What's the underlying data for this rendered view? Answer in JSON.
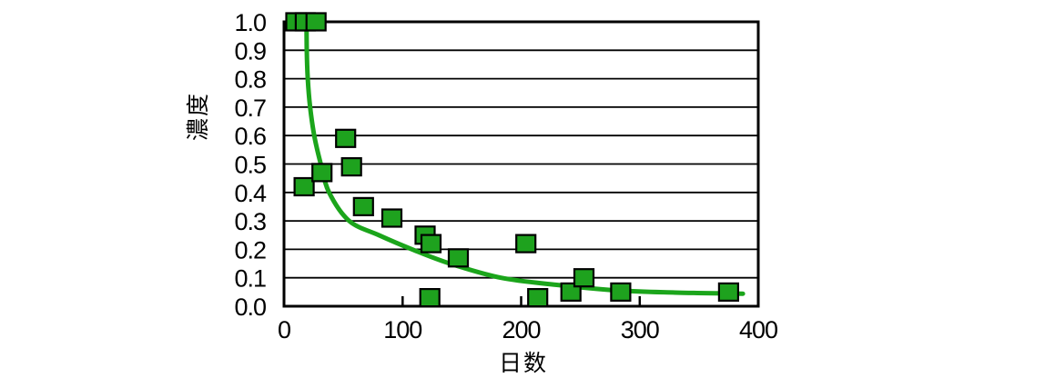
{
  "chart_data": {
    "type": "scatter",
    "title": "",
    "xlabel": "日数",
    "ylabel": "濃度",
    "xlim": [
      0,
      400
    ],
    "ylim": [
      0.0,
      1.0
    ],
    "x_tick_labels": [
      "0",
      "100",
      "200",
      "300",
      "400"
    ],
    "x_tick_values": [
      0,
      100,
      200,
      300,
      400
    ],
    "y_tick_labels": [
      "0.0",
      "0.1",
      "0.2",
      "0.3",
      "0.4",
      "0.5",
      "0.6",
      "0.7",
      "0.8",
      "0.9",
      "1.0"
    ],
    "y_tick_values": [
      0.0,
      0.1,
      0.2,
      0.3,
      0.4,
      0.5,
      0.6,
      0.7,
      0.8,
      0.9,
      1.0
    ],
    "grid": "horizontal",
    "legend": "none",
    "marker": {
      "shape": "square",
      "fill": "#1ea21e",
      "stroke": "#000000"
    },
    "colors": {
      "marker_green": "#1ea21e",
      "curve_green": "#1ba51b",
      "axis": "#000000",
      "gridline": "#000000",
      "background": "#ffffff"
    },
    "points": [
      [
        10,
        1.0
      ],
      [
        18,
        1.0
      ],
      [
        27,
        1.0
      ],
      [
        17,
        0.42
      ],
      [
        32,
        0.47
      ],
      [
        52,
        0.59
      ],
      [
        57,
        0.49
      ],
      [
        67,
        0.35
      ],
      [
        91,
        0.31
      ],
      [
        119,
        0.25
      ],
      [
        124,
        0.22
      ],
      [
        147,
        0.17
      ],
      [
        123,
        0.03
      ],
      [
        204,
        0.22
      ],
      [
        214,
        0.03
      ],
      [
        242,
        0.05
      ],
      [
        253,
        0.1
      ],
      [
        284,
        0.05
      ],
      [
        375,
        0.05
      ]
    ],
    "trend_curve": {
      "style": "decay-fit",
      "points": [
        [
          19,
          1.0
        ],
        [
          19.2,
          0.9
        ],
        [
          20,
          0.8
        ],
        [
          22,
          0.7
        ],
        [
          25.5,
          0.6
        ],
        [
          31,
          0.5
        ],
        [
          38,
          0.4
        ],
        [
          55,
          0.3
        ],
        [
          80,
          0.25
        ],
        [
          108,
          0.2
        ],
        [
          140,
          0.15
        ],
        [
          183,
          0.1
        ],
        [
          230,
          0.075
        ],
        [
          283,
          0.055
        ],
        [
          330,
          0.048
        ],
        [
          387,
          0.044
        ]
      ]
    }
  }
}
